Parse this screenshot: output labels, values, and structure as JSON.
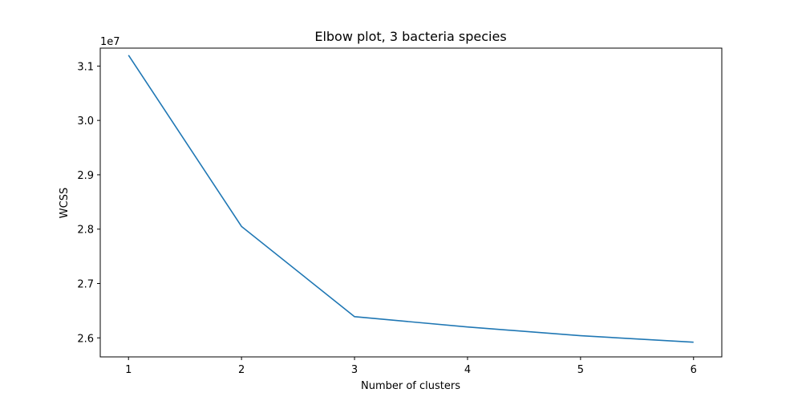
{
  "chart_data": {
    "type": "line",
    "title": "Elbow plot, 3 bacteria species",
    "xlabel": "Number of clusters",
    "ylabel": "WCSS",
    "y_offset_label": "1e7",
    "x": [
      1,
      2,
      3,
      4,
      5,
      6
    ],
    "series": [
      {
        "values": [
          31200000,
          28050000,
          26390000,
          26200000,
          26040000,
          25920000
        ],
        "color": "#1f77b4"
      }
    ],
    "xlim": [
      0.75,
      6.25
    ],
    "ylim": [
      25650000,
      31330000
    ],
    "xticks": [
      1,
      2,
      3,
      4,
      5,
      6
    ],
    "xtick_labels": [
      "1",
      "2",
      "3",
      "4",
      "5",
      "6"
    ],
    "yticks": [
      26000000,
      27000000,
      28000000,
      29000000,
      30000000,
      31000000
    ],
    "ytick_labels": [
      "2.6",
      "2.7",
      "2.8",
      "2.9",
      "3.0",
      "3.1"
    ],
    "grid": false,
    "legend": false
  }
}
